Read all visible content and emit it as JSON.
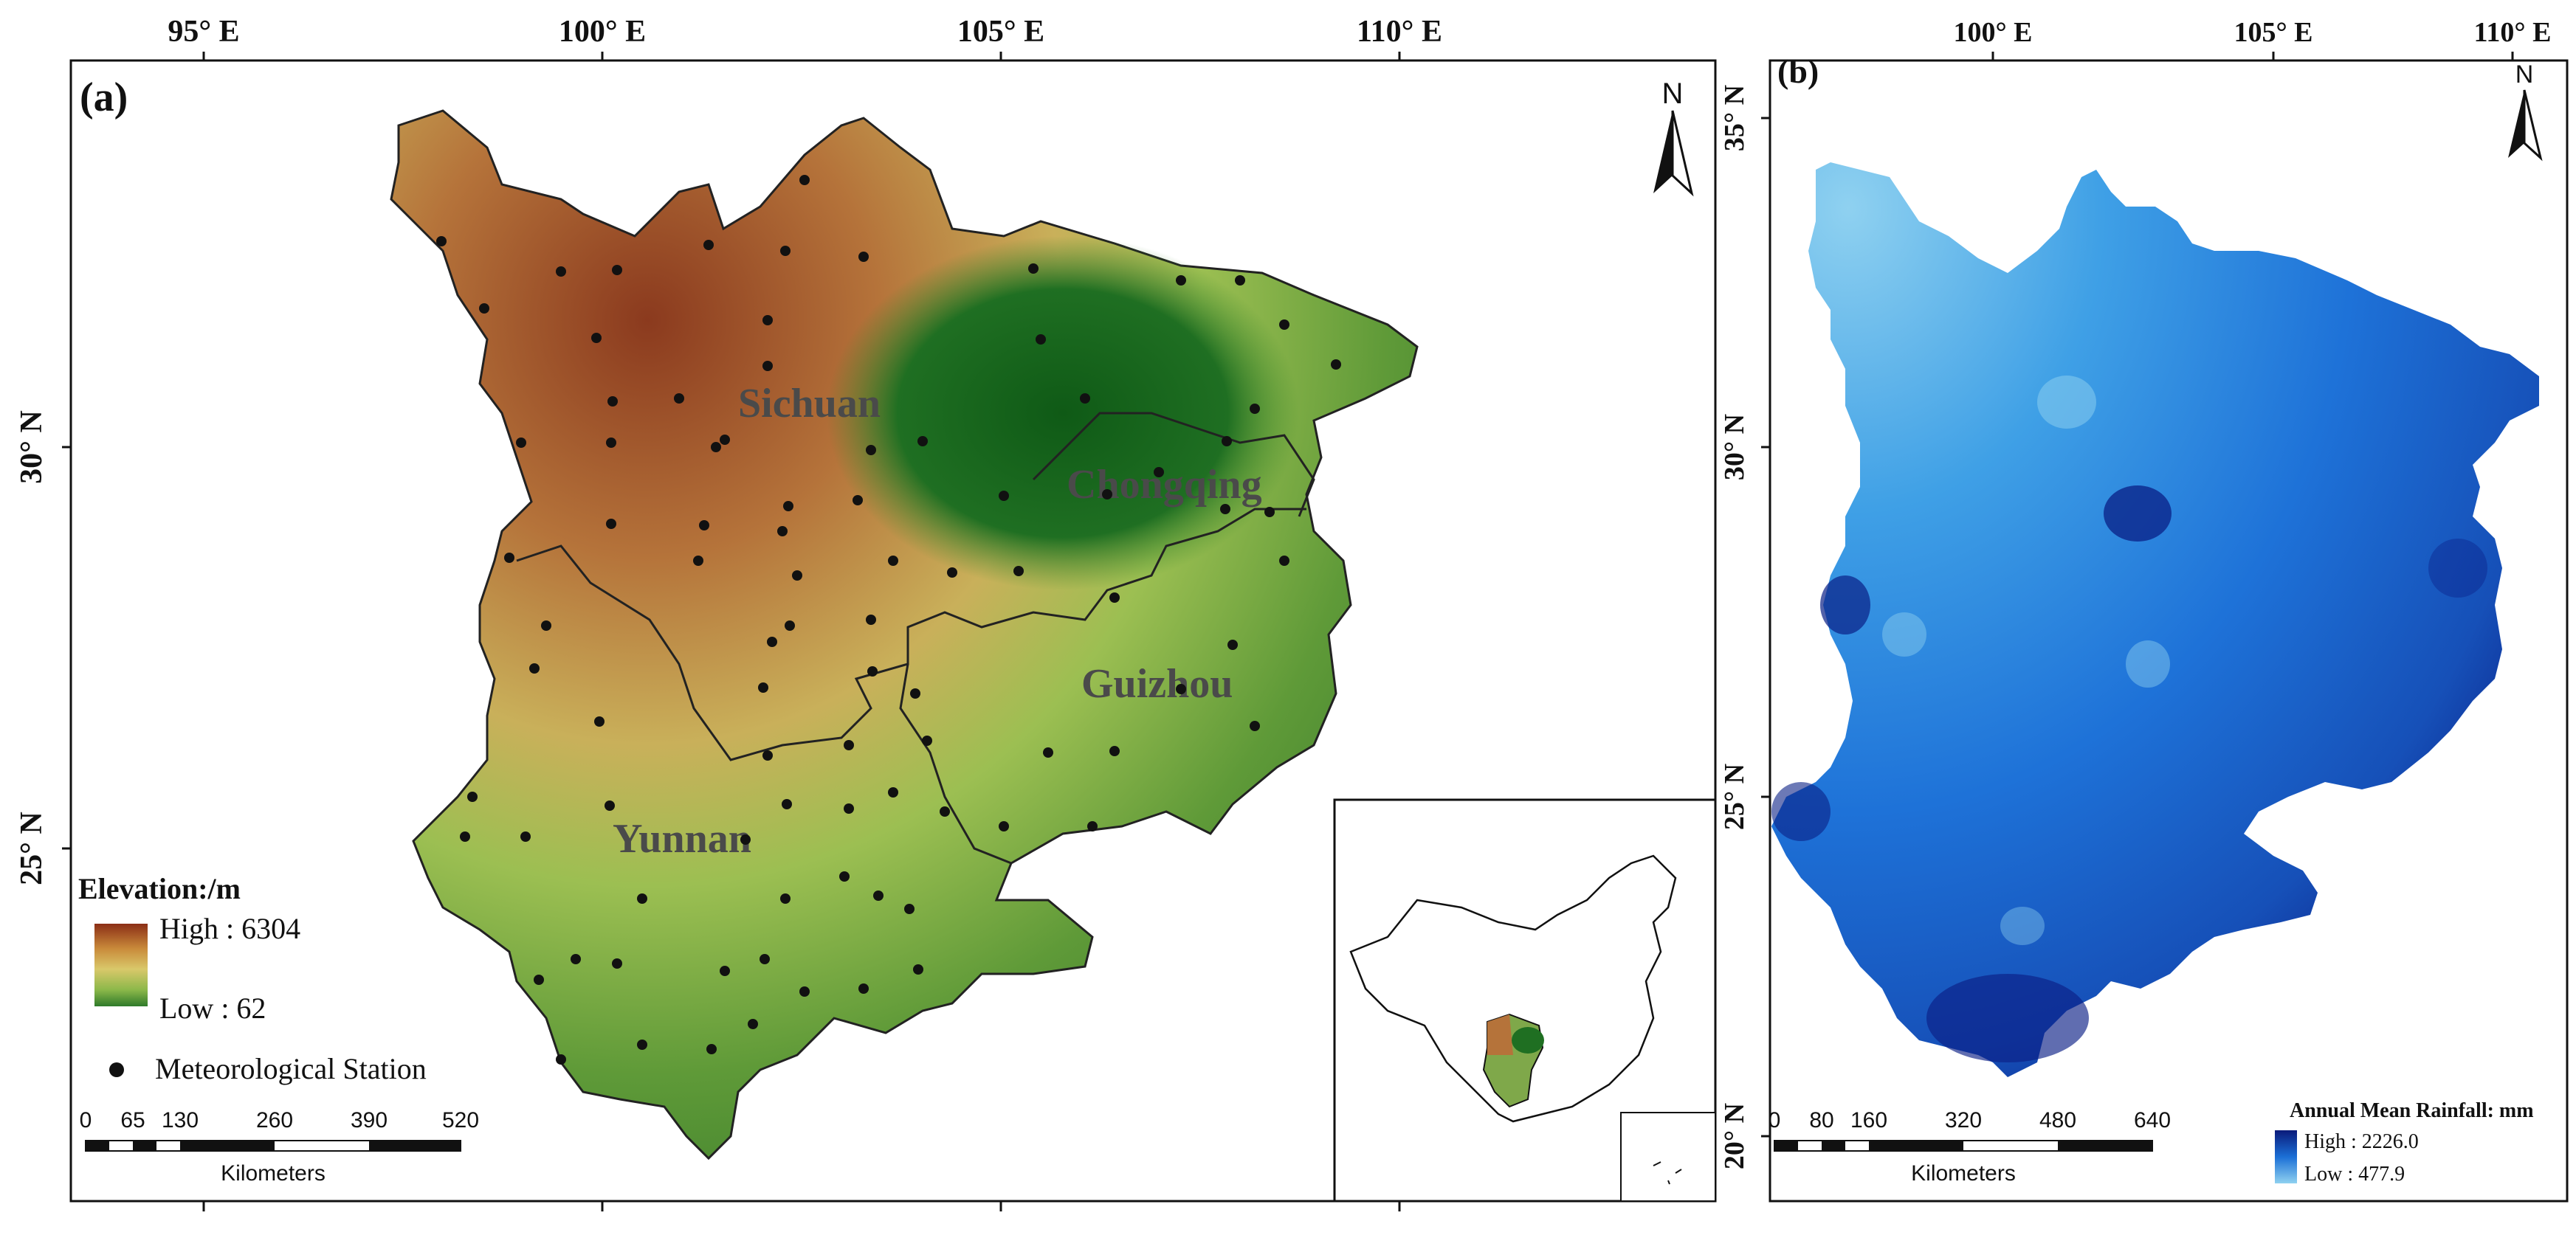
{
  "panel_a": {
    "label": "(a)",
    "lon_ticks": [
      "95° E",
      "100° E",
      "105° E",
      "110° E"
    ],
    "lat_ticks": [
      "30° N",
      "25° N"
    ],
    "provinces": [
      "Sichuan",
      "Chongqing",
      "Guizhou",
      "Yunnan"
    ],
    "legend": {
      "title": "Elevation:/m",
      "high": "High : 6304",
      "low": "Low : 62",
      "station_label": "Meteorological Station",
      "ramp_colors": [
        "#8b2e16",
        "#c98a3a",
        "#d9c86a",
        "#8cb84a",
        "#2f7a2a"
      ]
    },
    "scalebar": {
      "ticks": [
        "0",
        "65",
        "130",
        "260",
        "390",
        "520"
      ],
      "units": "Kilometers"
    },
    "north": "N"
  },
  "panel_b": {
    "label": "(b)",
    "lon_ticks": [
      "100° E",
      "105° E",
      "110° E"
    ],
    "lat_ticks": [
      "35° N",
      "30° N",
      "25° N",
      "20° N"
    ],
    "legend": {
      "title": "Annual Mean Rainfall: mm",
      "high": "High : 2226.0",
      "low": "Low : 477.9",
      "ramp_colors": [
        "#0a1a7a",
        "#1b6fd6",
        "#8fd1f0"
      ]
    },
    "scalebar": {
      "ticks": [
        "0",
        "80",
        "160",
        "320",
        "480",
        "640"
      ],
      "units": "Kilometers"
    },
    "north": "N"
  },
  "colors": {
    "frame": "#111111",
    "station": "#111111",
    "elev_high": "#8b2e16",
    "elev_low": "#2f7a2a",
    "rain_high": "#0a1a7a",
    "rain_low": "#8fd1f0"
  }
}
